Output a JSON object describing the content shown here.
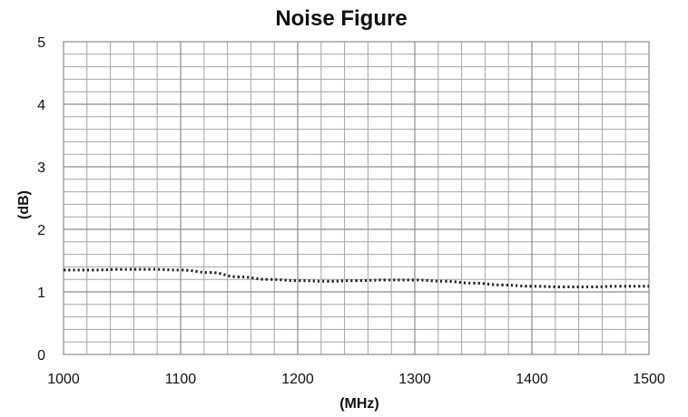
{
  "chart_data": {
    "type": "line",
    "title": "Noise Figure",
    "xlabel": "(MHz)",
    "ylabel": "(dB)",
    "xlim": [
      1000,
      1500
    ],
    "ylim": [
      0,
      5
    ],
    "x_ticks": [
      "1000",
      "1100",
      "1200",
      "1300",
      "1400",
      "1500"
    ],
    "y_ticks": [
      "0",
      "1",
      "2",
      "3",
      "4",
      "5"
    ],
    "grid": true,
    "line_style": "dotted",
    "line_color": "#222222",
    "grid_color": "#a6a6a6",
    "series": [
      {
        "x": [
          1000,
          1025,
          1050,
          1075,
          1100,
          1125,
          1150,
          1175,
          1200,
          1225,
          1250,
          1275,
          1300,
          1325,
          1350,
          1375,
          1400,
          1425,
          1450,
          1475,
          1500
        ],
        "values": [
          1.35,
          1.35,
          1.36,
          1.36,
          1.35,
          1.31,
          1.24,
          1.2,
          1.18,
          1.17,
          1.18,
          1.19,
          1.19,
          1.17,
          1.14,
          1.11,
          1.09,
          1.08,
          1.08,
          1.09,
          1.09
        ]
      }
    ]
  }
}
